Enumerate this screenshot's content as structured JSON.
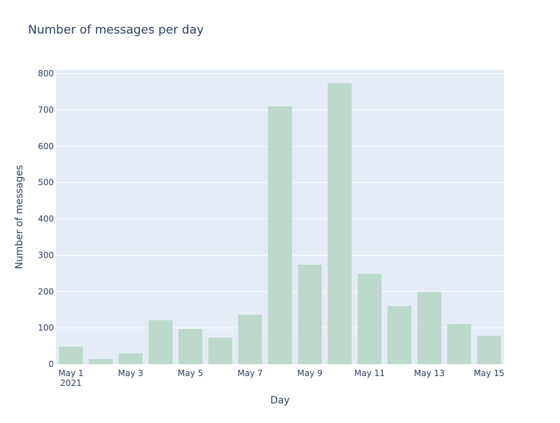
{
  "chart_data": {
    "type": "bar",
    "title": "Number of messages per day",
    "xlabel": "Day",
    "ylabel": "Number of messages",
    "x": [
      "2021-05-01",
      "2021-05-02",
      "2021-05-03",
      "2021-05-04",
      "2021-05-05",
      "2021-05-06",
      "2021-05-07",
      "2021-05-08",
      "2021-05-09",
      "2021-05-10",
      "2021-05-11",
      "2021-05-12",
      "2021-05-13",
      "2021-05-14",
      "2021-05-15"
    ],
    "values": [
      48,
      14,
      30,
      121,
      97,
      73,
      136,
      710,
      274,
      774,
      249,
      160,
      199,
      110,
      78
    ],
    "ylim": [
      0,
      810
    ],
    "y_ticks": [
      0,
      100,
      200,
      300,
      400,
      500,
      600,
      700,
      800
    ],
    "x_tick_labels": [
      {
        "date": "2021-05-01",
        "label": "May 1",
        "sublabel": "2021"
      },
      {
        "date": "2021-05-03",
        "label": "May 3"
      },
      {
        "date": "2021-05-05",
        "label": "May 5"
      },
      {
        "date": "2021-05-07",
        "label": "May 7"
      },
      {
        "date": "2021-05-09",
        "label": "May 9"
      },
      {
        "date": "2021-05-11",
        "label": "May 11"
      },
      {
        "date": "2021-05-13",
        "label": "May 13"
      },
      {
        "date": "2021-05-15",
        "label": "May 15"
      }
    ],
    "bar_color": "#bcd9cb",
    "plot_background": "#e5ecf6",
    "gridline_color": "#ffffff",
    "text_color": "#2a3f5f",
    "grid": true,
    "legend": false
  }
}
